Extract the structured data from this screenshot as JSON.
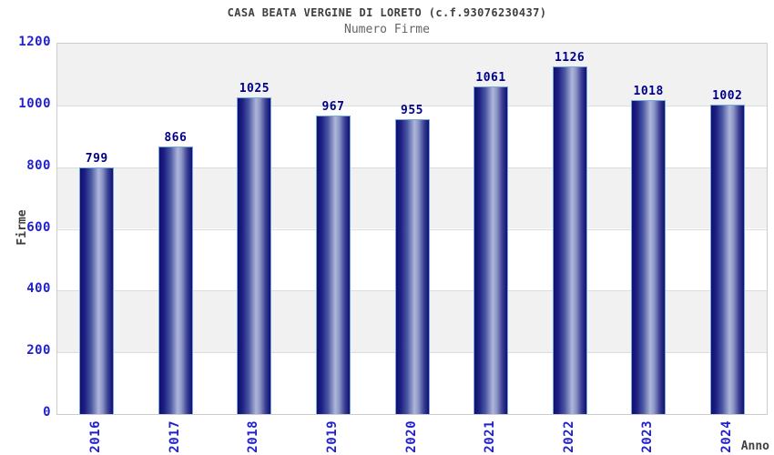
{
  "chart_data": {
    "type": "bar",
    "title": "CASA BEATA VERGINE DI LORETO (c.f.93076230437)",
    "subtitle": "Numero Firme",
    "xlabel": "Anno",
    "ylabel": "Firme",
    "categories": [
      "2016",
      "2017",
      "2018",
      "2019",
      "2020",
      "2021",
      "2022",
      "2023",
      "2024"
    ],
    "values": [
      799,
      866,
      1025,
      967,
      955,
      1061,
      1126,
      1018,
      1002
    ],
    "ylim": [
      0,
      1200
    ],
    "yticks": [
      0,
      200,
      400,
      600,
      800,
      1000,
      1200
    ],
    "grid": true,
    "legend_position": "none",
    "band_colors": [
      "#f1f1f1",
      "#ffffff"
    ],
    "colors": {
      "tick_label": "#2222cc",
      "value_label": "#00008b",
      "title": "#404040",
      "subtitle": "#646464",
      "bar_dark": "#10106e",
      "bar_light": "#aeb6da",
      "bar_border": "#74a7dd",
      "plot_border": "#cccccc",
      "gridline": "#dcdcdc"
    }
  }
}
